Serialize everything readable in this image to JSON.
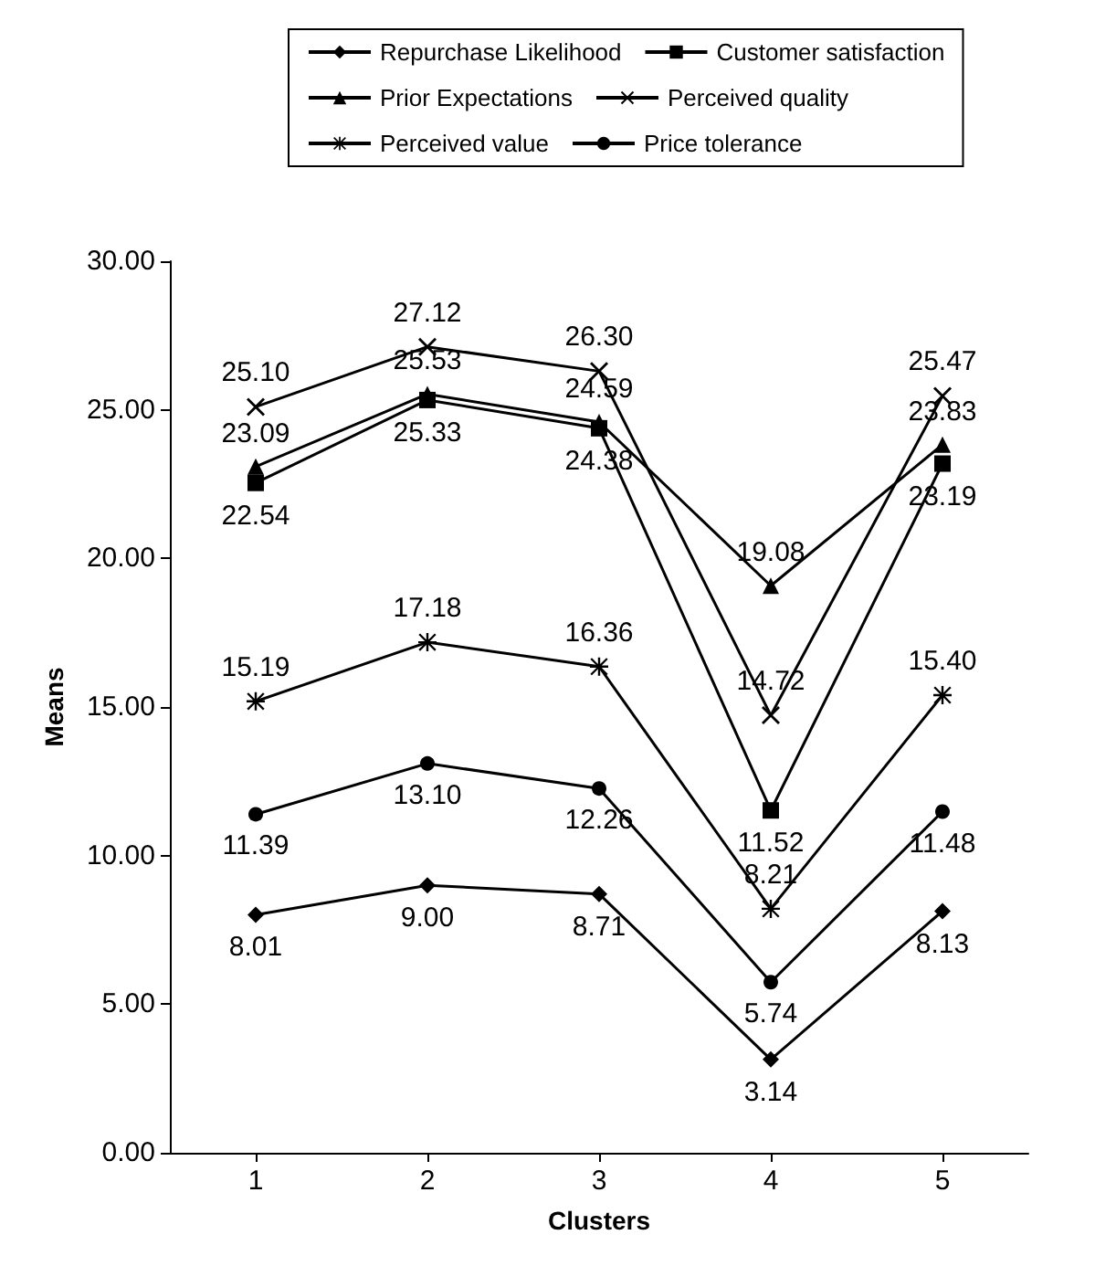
{
  "chart_data": {
    "type": "line",
    "xlabel": "Clusters",
    "ylabel": "Means",
    "categories": [
      "1",
      "2",
      "3",
      "4",
      "5"
    ],
    "series": [
      {
        "name": "Repurchase Likelihood",
        "color": "#000000",
        "marker": "diamond",
        "values": [
          8.01,
          9.0,
          8.71,
          3.14,
          8.13
        ],
        "value_labels": [
          "8.01",
          "9.00",
          "8.71",
          "3.14",
          "8.13"
        ]
      },
      {
        "name": "Customer satisfaction",
        "color": "#000000",
        "marker": "square",
        "values": [
          22.54,
          25.33,
          24.38,
          11.52,
          23.19
        ],
        "value_labels": [
          "22.54",
          "25.33",
          "24.38",
          "11.52",
          "23.19"
        ]
      },
      {
        "name": "Prior Expectations",
        "color": "#000000",
        "marker": "triangle",
        "values": [
          23.09,
          25.53,
          24.59,
          19.08,
          23.83
        ],
        "value_labels": [
          "23.09",
          "25.53",
          "24.59",
          "19.08",
          "23.83"
        ]
      },
      {
        "name": "Perceived quality",
        "color": "#000000",
        "marker": "cross",
        "values": [
          25.1,
          27.12,
          26.3,
          14.72,
          25.47
        ],
        "value_labels": [
          "25.10",
          "27.12",
          "26.30",
          "14.72",
          "25.47"
        ]
      },
      {
        "name": "Perceived value",
        "color": "#000000",
        "marker": "star",
        "values": [
          15.19,
          17.18,
          16.36,
          8.21,
          15.4
        ],
        "value_labels": [
          "15.19",
          "17.18",
          "16.36",
          "8.21",
          "15.40"
        ]
      },
      {
        "name": "Price tolerance",
        "color": "#000000",
        "marker": "circle",
        "values": [
          11.39,
          13.1,
          12.26,
          5.74,
          11.48
        ],
        "value_labels": [
          "11.39",
          "13.10",
          "12.26",
          "5.74",
          "11.48"
        ]
      }
    ],
    "ylim": [
      0,
      30
    ],
    "yticks": [
      {
        "value": 0,
        "label": "0.00"
      },
      {
        "value": 5,
        "label": "5.00"
      },
      {
        "value": 10,
        "label": "10.00"
      },
      {
        "value": 15,
        "label": "15.00"
      },
      {
        "value": 20,
        "label": "20.00"
      },
      {
        "value": 25,
        "label": "25.00"
      },
      {
        "value": 30,
        "label": "30.00"
      }
    ],
    "grid": false,
    "legend": "top",
    "line_style": "solid"
  }
}
